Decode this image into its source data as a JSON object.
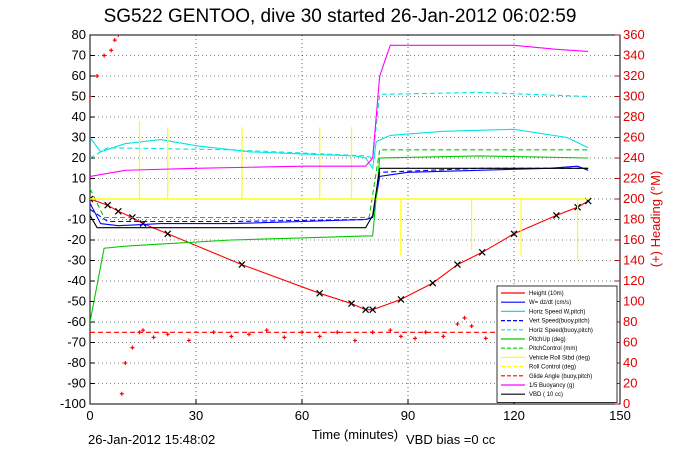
{
  "chart_data": {
    "type": "line",
    "title": "SG522 GENTOO, dive 30 started 26-Jan-2012 06:02:59",
    "xlabel": "Time (minutes)",
    "ylabel_right": "(+) Heading (°M)",
    "footer_left": "26-Jan-2012 15:48:02",
    "footer_right": "VBD bias =0 cc",
    "xlim": [
      0,
      150
    ],
    "ylim": [
      -100,
      80
    ],
    "ylim_right": [
      0,
      360
    ],
    "xticks": [
      0,
      30,
      60,
      90,
      120,
      150
    ],
    "yticks": [
      -100,
      -90,
      -80,
      -70,
      -60,
      -50,
      -40,
      -30,
      -20,
      -10,
      0,
      10,
      20,
      30,
      40,
      50,
      60,
      70,
      80
    ],
    "yticks_right": [
      0,
      20,
      40,
      60,
      80,
      100,
      120,
      140,
      160,
      180,
      200,
      220,
      240,
      260,
      280,
      300,
      320,
      340,
      360
    ],
    "legend_position": "bottom-right",
    "colors": {
      "right_axis": "#e00000",
      "axis": "#000000"
    },
    "series": [
      {
        "name": "Height (10m)",
        "color": "#ff0000",
        "style": "solid-marker",
        "x": [
          0,
          5,
          8,
          12,
          15,
          22,
          43,
          65,
          74,
          78,
          80,
          88,
          97,
          104,
          111,
          120,
          132,
          138,
          141
        ],
        "y": [
          0,
          -3,
          -6,
          -9,
          -12,
          -17,
          -32,
          -46,
          -51,
          -54,
          -54,
          -49,
          -41,
          -32,
          -26,
          -17,
          -8,
          -4,
          -1
        ]
      },
      {
        "name": "W= dz/dt (cm/s)",
        "color": "#0000ff",
        "style": "solid",
        "x": [
          0,
          3,
          8,
          20,
          40,
          60,
          78,
          80,
          82,
          90,
          110,
          130,
          138,
          141
        ],
        "y": [
          -2,
          -12,
          -13,
          -12,
          -12,
          -11,
          -10,
          -9,
          11,
          13,
          14,
          15,
          16,
          14
        ]
      },
      {
        "name": "Horiz Speed W,pitch)",
        "color": "#00e5e5",
        "style": "solid",
        "x": [
          0,
          3,
          10,
          20,
          30,
          45,
          60,
          75,
          78,
          80,
          81,
          85,
          100,
          120,
          135,
          141
        ],
        "y": [
          30,
          23,
          27,
          29,
          26,
          23,
          22,
          21,
          20,
          15,
          28,
          31,
          33,
          34,
          30,
          25
        ]
      },
      {
        "name": "Vert Speed(buoy,pitch)",
        "color": "#0000ff",
        "style": "dashed",
        "x": [
          0,
          5,
          40,
          78,
          80,
          82,
          110,
          141
        ],
        "y": [
          -5,
          -11,
          -11,
          -10,
          -9,
          13,
          15,
          15
        ]
      },
      {
        "name": "Horiz Speed(buoy,pitch)",
        "color": "#00e5e5",
        "style": "dashed",
        "x": [
          0,
          5,
          40,
          78,
          80,
          82,
          110,
          141
        ],
        "y": [
          20,
          25,
          24,
          21,
          20,
          51,
          52,
          50
        ]
      },
      {
        "name": "PitchUp (deg)",
        "color": "#00cc00",
        "style": "solid",
        "x": [
          0,
          4,
          10,
          20,
          40,
          60,
          78,
          80,
          82,
          110,
          141
        ],
        "y": [
          -60,
          -24,
          -23,
          -22,
          -20,
          -19,
          -18,
          -18,
          20,
          21,
          20
        ]
      },
      {
        "name": "PitchControl (mm)",
        "color": "#00cc00",
        "style": "dashed",
        "x": [
          0,
          4,
          78,
          79,
          82,
          141
        ],
        "y": [
          5,
          -9,
          -9,
          -9,
          24,
          24
        ]
      },
      {
        "name": "Vehicle Roll Stbd (deg)",
        "color": "#ffff00",
        "style": "solid",
        "x": [
          0,
          14,
          14,
          14,
          16,
          22,
          22,
          22,
          24,
          43,
          43,
          43,
          45,
          65,
          65,
          65,
          67,
          74,
          74,
          74,
          76,
          88,
          88,
          88,
          90,
          108,
          108,
          108,
          110,
          122,
          122,
          122,
          124,
          138,
          138,
          138,
          141
        ],
        "y": [
          0,
          0,
          38,
          0,
          0,
          0,
          35,
          0,
          0,
          0,
          35,
          0,
          0,
          0,
          35,
          0,
          0,
          0,
          35,
          0,
          0,
          0,
          -28,
          0,
          0,
          0,
          -25,
          0,
          0,
          0,
          -28,
          0,
          0,
          0,
          -30,
          0,
          0
        ]
      },
      {
        "name": "Roll Control (deg)",
        "color": "#ffff00",
        "style": "dashed",
        "x": [
          0,
          141
        ],
        "y": [
          0,
          0
        ]
      },
      {
        "name": "Glide Angle (buoy,pitch)",
        "color": "#ff0000",
        "style": "dashed",
        "x": [
          0,
          141
        ],
        "y": [
          -65,
          -65
        ]
      },
      {
        "name": "1/5 Buoyancy (g)",
        "color": "#ff00ff",
        "style": "solid",
        "x": [
          0,
          10,
          30,
          60,
          78,
          80,
          82,
          85,
          100,
          120,
          132,
          141
        ],
        "y": [
          11,
          14,
          15,
          16,
          16,
          20,
          60,
          75,
          75,
          75,
          73,
          72
        ]
      },
      {
        "name": "VBD ( 10 cc)",
        "color": "#000000",
        "style": "solid",
        "x": [
          0,
          2,
          78,
          80,
          82,
          85,
          141
        ],
        "y": [
          -8,
          -14,
          -14,
          -8,
          15,
          15,
          15
        ]
      }
    ],
    "heading": {
      "name": "(+) Heading (°M)",
      "color": "#ff0000",
      "style": "markers",
      "x": [
        0,
        2,
        4,
        6,
        7,
        8,
        9,
        10,
        12,
        14,
        15,
        18,
        22,
        28,
        35,
        40,
        45,
        50,
        55,
        60,
        65,
        70,
        75,
        80,
        85,
        88,
        92,
        95,
        100,
        104,
        106,
        108,
        112,
        116,
        120,
        126,
        130,
        134,
        138,
        141
      ],
      "y": [
        300,
        320,
        340,
        345,
        355,
        360,
        10,
        40,
        55,
        70,
        72,
        65,
        68,
        62,
        70,
        66,
        68,
        72,
        65,
        70,
        66,
        70,
        62,
        70,
        72,
        66,
        64,
        70,
        66,
        78,
        84,
        76,
        64,
        70,
        74,
        62,
        68,
        66,
        70,
        65
      ]
    }
  }
}
